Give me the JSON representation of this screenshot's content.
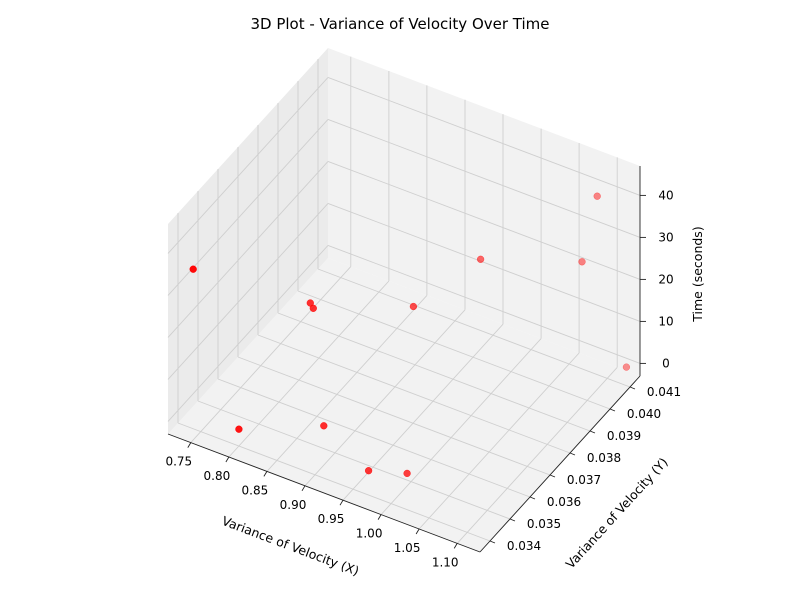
{
  "chart_data": {
    "type": "scatter",
    "title": "3D Plot - Variance of Velocity Over Time",
    "xlabel": "Variance of Velocity (X)",
    "ylabel": "Variance of Velocity (Y)",
    "zlabel": "Time (seconds)",
    "xlim": [
      0.72,
      1.13
    ],
    "ylim": [
      0.0335,
      0.0415
    ],
    "zlim": [
      -3,
      47
    ],
    "x_ticks": [
      "0.75",
      "0.80",
      "0.85",
      "0.90",
      "0.95",
      "1.00",
      "1.05",
      "1.10"
    ],
    "y_ticks": [
      "0.034",
      "0.035",
      "0.036",
      "0.037",
      "0.038",
      "0.039",
      "0.040",
      "0.041"
    ],
    "z_ticks": [
      "0",
      "10",
      "20",
      "30",
      "40"
    ],
    "grid": true,
    "marker_color": "#ff0000",
    "points": [
      {
        "x": 0.74,
        "y": 0.034,
        "z": 35
      },
      {
        "x": 0.836,
        "y": 0.0362,
        "z": 22
      },
      {
        "x": 0.84,
        "y": 0.0362,
        "z": 21
      },
      {
        "x": 0.94,
        "y": 0.0374,
        "z": 22
      },
      {
        "x": 0.96,
        "y": 0.04,
        "z": 21
      },
      {
        "x": 1.08,
        "y": 0.0405,
        "z": 26
      },
      {
        "x": 0.88,
        "y": 0.0352,
        "z": 1
      },
      {
        "x": 1.0,
        "y": 0.0348,
        "z": 0
      },
      {
        "x": 0.96,
        "y": 0.0344,
        "z": 0
      },
      {
        "x": 0.8,
        "y": 0.034,
        "z": 1
      },
      {
        "x": 1.1,
        "y": 0.0405,
        "z": 43
      },
      {
        "x": 1.12,
        "y": 0.0412,
        "z": 0
      }
    ]
  }
}
